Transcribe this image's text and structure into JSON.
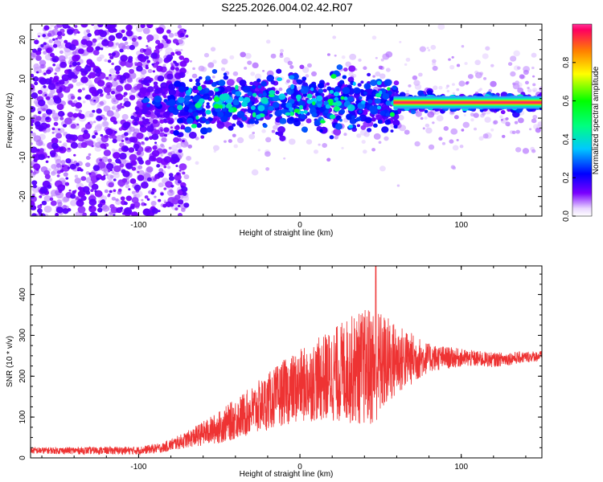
{
  "title": "S225.2026.004.02.42.R07",
  "chart_data": [
    {
      "type": "heatmap",
      "title": "S225.2026.004.02.42.R07",
      "xlabel": "Height of straight line (km)",
      "ylabel": "Frequency (Hz)",
      "xlim": [
        -167,
        150
      ],
      "ylim": [
        -25,
        24
      ],
      "xticks": [
        -100,
        0,
        100
      ],
      "xtick_labels": [
        "-100",
        "0",
        "100"
      ],
      "yticks": [
        -20,
        -10,
        0,
        10,
        20
      ],
      "ytick_labels": [
        "-20",
        "-10",
        "0",
        "10",
        "20"
      ],
      "colorbar": {
        "label": "Normalized spectral amplitude",
        "range": [
          0,
          1
        ],
        "ticks": [
          0.0,
          0.2,
          0.4,
          0.6,
          0.8
        ],
        "tick_labels": [
          "0.0",
          "0.2",
          "0.4",
          "0.6",
          "0.8"
        ]
      },
      "description_ridge": {
        "center_frequency_hz": 4,
        "peak_amplitude": 0.9,
        "noise_region_km": [
          -167,
          -80
        ]
      }
    },
    {
      "type": "line",
      "xlabel": "Height of straight line (km)",
      "ylabel": "SNR (10 * v/v)",
      "xlim": [
        -167,
        150
      ],
      "ylim": [
        0,
        470
      ],
      "xticks": [
        -100,
        0,
        100
      ],
      "xtick_labels": [
        "-100",
        "0",
        "100"
      ],
      "yticks": [
        0,
        100,
        200,
        300,
        400
      ],
      "ytick_labels": [
        "0",
        "100",
        "200",
        "300",
        "400"
      ],
      "color": "#ee3333",
      "envelope": {
        "x": [
          -167,
          -100,
          -85,
          -70,
          -50,
          -30,
          -10,
          10,
          30,
          45,
          60,
          80,
          100,
          120,
          150
        ],
        "mean": [
          18,
          18,
          25,
          45,
          75,
          115,
          160,
          190,
          215,
          225,
          240,
          245,
          245,
          240,
          250
        ],
        "spread": [
          8,
          10,
          12,
          20,
          40,
          60,
          80,
          100,
          130,
          150,
          90,
          35,
          22,
          18,
          12
        ]
      },
      "peak": {
        "x": 47,
        "y": 470
      }
    }
  ]
}
